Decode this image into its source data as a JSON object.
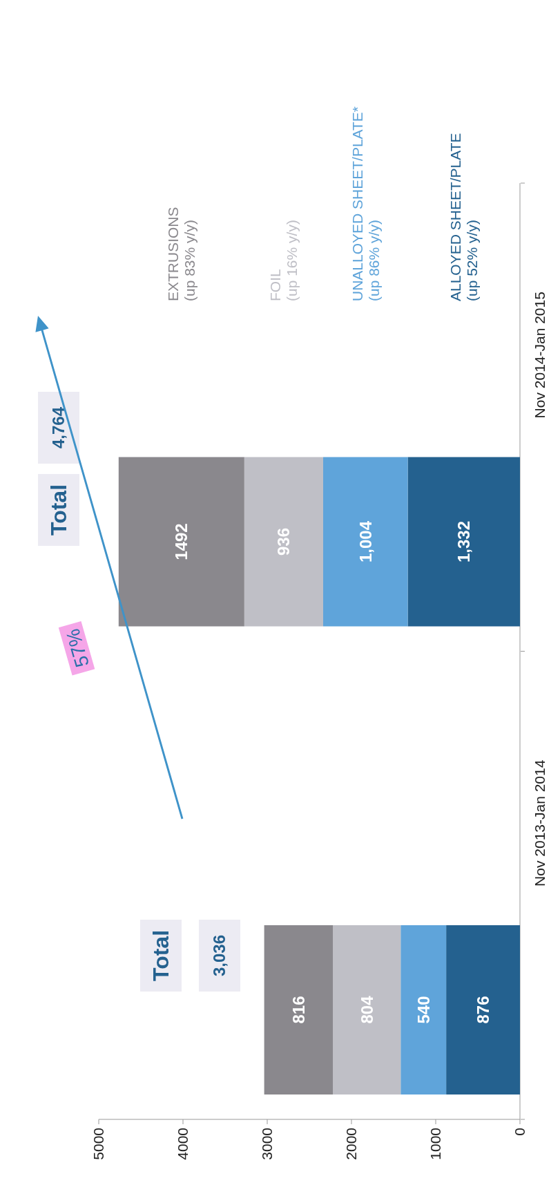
{
  "chart_data": {
    "type": "bar",
    "stacked": true,
    "orientation": "horizontal",
    "categories": [
      "Nov 2014-Jan 2015",
      "Nov 2013-Jan 2014"
    ],
    "series": [
      {
        "name": "ALLOYED SHEET/PLATE (up 52% y/y)",
        "color": "#24618f",
        "values": [
          1332,
          876
        ],
        "value_labels": [
          "1,332",
          "876"
        ]
      },
      {
        "name": "UNALLOYED SHEET/PLATE* (up 86% y/y)",
        "color": "#5fa4da",
        "values": [
          1004,
          540
        ],
        "value_labels": [
          "1,004",
          "540"
        ]
      },
      {
        "name": "FOIL (up 16% y/y)",
        "color": "#bfbfc6",
        "values": [
          936,
          804
        ],
        "value_labels": [
          "936",
          "804"
        ]
      },
      {
        "name": "EXTRUSIONS (up 83% y/y)",
        "color": "#8a888d",
        "values": [
          1492,
          816
        ],
        "value_labels": [
          "1492",
          "816"
        ]
      }
    ],
    "totals": [
      "4,764",
      "3,036"
    ],
    "xlim": [
      5000,
      0
    ],
    "xticks": [
      0,
      1000,
      2000,
      3000,
      4000,
      5000
    ],
    "legend": "right",
    "annotations": [
      "Total",
      "Total",
      "57%"
    ]
  }
}
